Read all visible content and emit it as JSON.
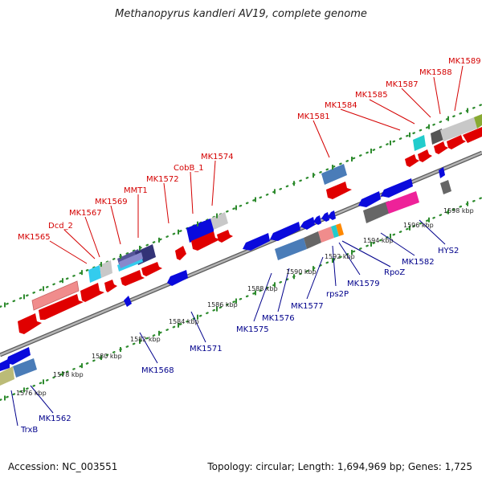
{
  "title": "Methanopyrus kandleri AV19, complete genome",
  "footer": {
    "accession": "Accession: NC_003551",
    "summary": "Topology: circular; Length: 1,694,969 bp; Genes: 1,725"
  },
  "colors": {
    "forward_label": "#d40000",
    "reverse_label": "#00008b",
    "backbone": "#888888",
    "dots": "#2e8b2e"
  },
  "forward_labels": [
    "MK1565",
    "Dcd_2",
    "MK1567",
    "MK1569",
    "MMT1",
    "MK1572",
    "CobB_1",
    "MK1574",
    "MK1581",
    "MK1584",
    "MK1585",
    "MK1587",
    "MK1588",
    "MK1589"
  ],
  "reverse_labels": [
    "TrxB",
    "MK1562",
    "MK1568",
    "MK1571",
    "MK1575",
    "MK1576",
    "MK1577",
    "rps2P",
    "MK1579",
    "RpoZ",
    "MK1582",
    "HYS2"
  ],
  "ticks": [
    "1576 kbp",
    "1578 kbp",
    "1580 kbp",
    "1582 kbp",
    "1584 kbp",
    "1586 kbp",
    "1588 kbp",
    "1590 kbp",
    "1592 kbp",
    "1594 kbp",
    "1596 kbp",
    "1598 kbp"
  ]
}
